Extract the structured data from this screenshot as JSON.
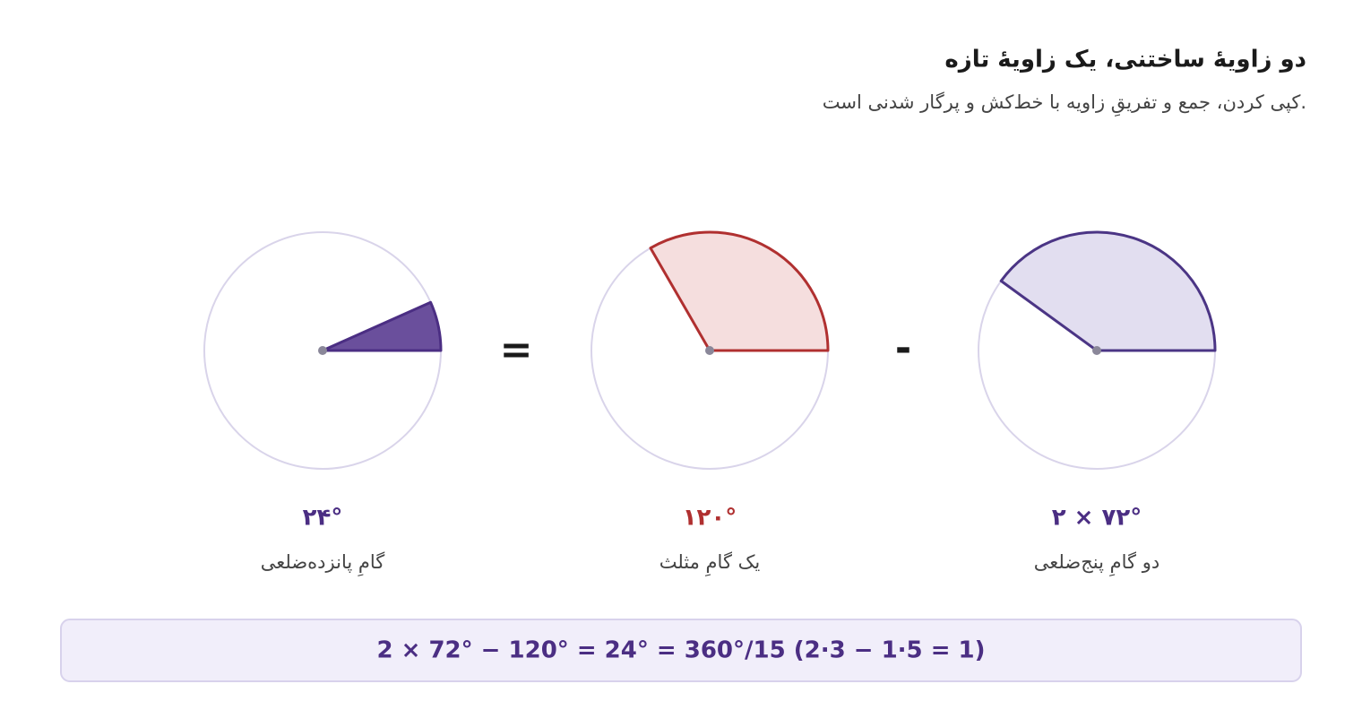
{
  "header": {
    "title": "دو زاویهٔ ساختنی، یک زاویهٔ تازه",
    "subtitle": "کپی کردن، جمع و تفریقِ زاویه با خط‌کش و پرگار شدنی است."
  },
  "panels": [
    {
      "value": "۲۴°",
      "caption": "گامِ پانزده‌ضلعی"
    },
    {
      "value": "۱۲۰°",
      "caption": "یک گامِ مثلث"
    },
    {
      "value": "۲ × ۷۲°",
      "caption": "دو گامِ پنج‌ضلعی"
    }
  ],
  "operators": [
    "=",
    "-"
  ],
  "formula": "2 × 72° − 120° = 24° = 360°/15 (2·3 − 1·5 = 1)"
}
